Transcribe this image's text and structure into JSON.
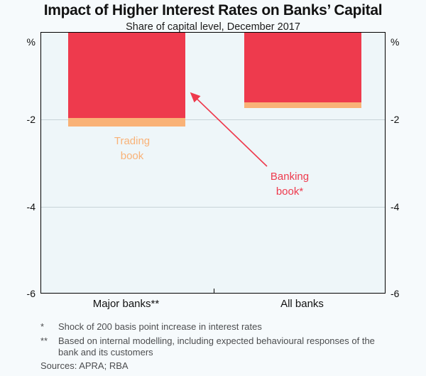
{
  "chart_data": {
    "type": "bar",
    "stacked": true,
    "title": "Impact of Higher Interest Rates on Banks’ Capital",
    "subtitle": "Share of capital level, December 2017",
    "categories": [
      "Major banks**",
      "All banks"
    ],
    "series": [
      {
        "name": "Banking book*",
        "color": "#ee3a4d",
        "values": [
          -1.95,
          -1.6
        ]
      },
      {
        "name": "Trading book",
        "color": "#f9b277",
        "values": [
          -0.2,
          -0.13
        ]
      }
    ],
    "ylabel": "%",
    "ylim": [
      -6,
      0
    ],
    "yticks": [
      "-2",
      "-4",
      "-6"
    ],
    "grid": true,
    "legend_position": "none",
    "annotations": [
      {
        "text": "Trading\nbook",
        "target": "trading-book-segment-major-banks"
      },
      {
        "text": "Banking\nbook*",
        "target": "banking-book-segment-major-banks"
      }
    ]
  },
  "plot_bg": "#eef6f9",
  "footnotes": [
    {
      "marker": "*",
      "text": "Shock of 200 basis point increase in interest rates"
    },
    {
      "marker": "**",
      "text": "Based on internal modelling, including expected behavioural responses of the bank and its customers"
    }
  ],
  "sources": "Sources: APRA; RBA"
}
